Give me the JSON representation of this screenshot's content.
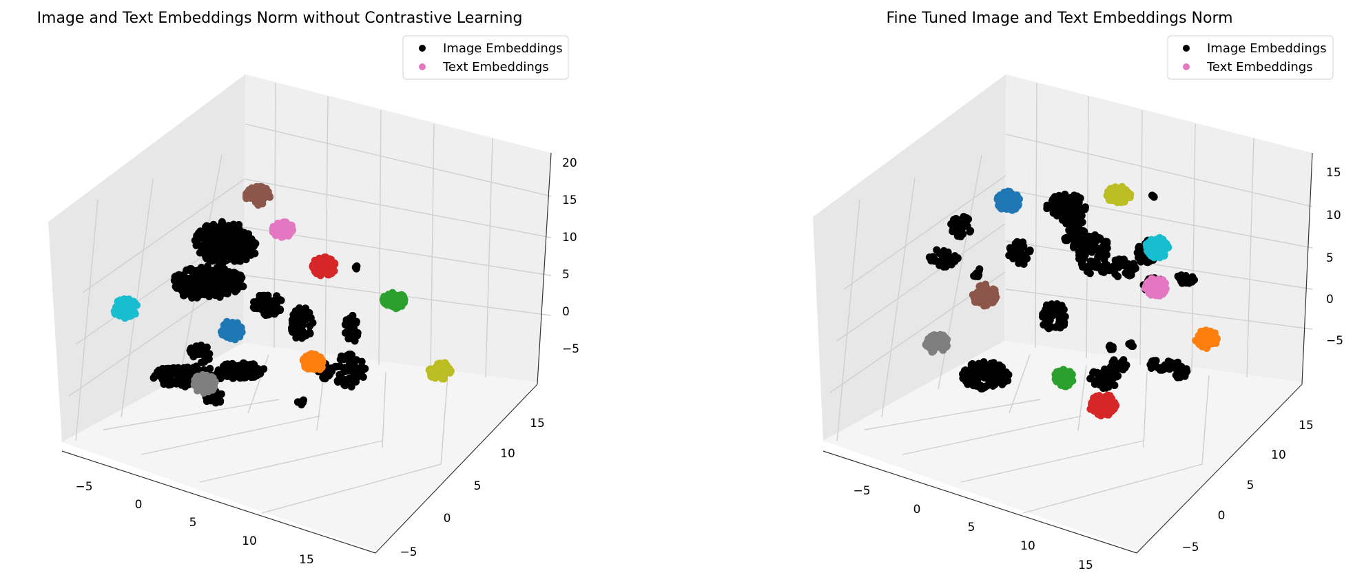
{
  "chart_data": [
    {
      "type": "scatter",
      "title": "Image and Text Embeddings Norm without Contrastive Learning",
      "legend": {
        "placement": "top-right",
        "entries": [
          {
            "label": "Image Embeddings",
            "color": "#000000"
          },
          {
            "label": "Text Embeddings",
            "color": "#e377c2"
          }
        ]
      },
      "axes": {
        "x_ticks": [
          "−5",
          "0",
          "5",
          "10",
          "15"
        ],
        "y_ticks": [
          "−5",
          "0",
          "5",
          "10",
          "15"
        ],
        "z_ticks": [
          "−5",
          "0",
          "5",
          "10",
          "15",
          "20"
        ],
        "grid": true
      },
      "series": [
        {
          "name": "Image Embeddings",
          "color": "#000000",
          "points": [
            [
              1,
              0,
              10
            ],
            [
              2,
              1,
              8
            ],
            [
              0,
              2,
              6
            ],
            [
              3,
              3,
              5
            ],
            [
              6,
              3,
              4
            ],
            [
              5,
              5,
              2
            ],
            [
              7,
              7,
              1
            ],
            [
              9,
              8,
              0
            ],
            [
              4,
              10,
              0
            ],
            [
              8,
              4,
              -1
            ]
          ]
        },
        {
          "name": "Text Embeddings",
          "color": "#e377c2",
          "points": [
            [
              9,
              13,
              12
            ]
          ]
        }
      ]
    },
    {
      "type": "scatter",
      "title": "Fine Tuned Image and Text Embeddings Norm",
      "legend": {
        "placement": "top-right",
        "entries": [
          {
            "label": "Image Embeddings",
            "color": "#000000"
          },
          {
            "label": "Text Embeddings",
            "color": "#e377c2"
          }
        ]
      },
      "axes": {
        "x_ticks": [
          "−5",
          "0",
          "5",
          "10",
          "15"
        ],
        "y_ticks": [
          "−5",
          "0",
          "5",
          "10",
          "15"
        ],
        "z_ticks": [
          "−5",
          "0",
          "5",
          "10",
          "15"
        ],
        "grid": true
      },
      "series": [
        {
          "name": "Image Embeddings",
          "color": "#000000",
          "points": [
            [
              0,
              2,
              8
            ],
            [
              2,
              5,
              7
            ],
            [
              5,
              8,
              6
            ],
            [
              7,
              10,
              4
            ],
            [
              4,
              6,
              2
            ],
            [
              8,
              12,
              3
            ],
            [
              10,
              13,
              1
            ],
            [
              12,
              14,
              0
            ],
            [
              6,
              7,
              -2
            ],
            [
              9,
              9,
              -3
            ]
          ]
        },
        {
          "name": "Text Embeddings",
          "color": "#e377c2",
          "points": [
            [
              13,
              14,
              3
            ]
          ]
        }
      ]
    }
  ]
}
